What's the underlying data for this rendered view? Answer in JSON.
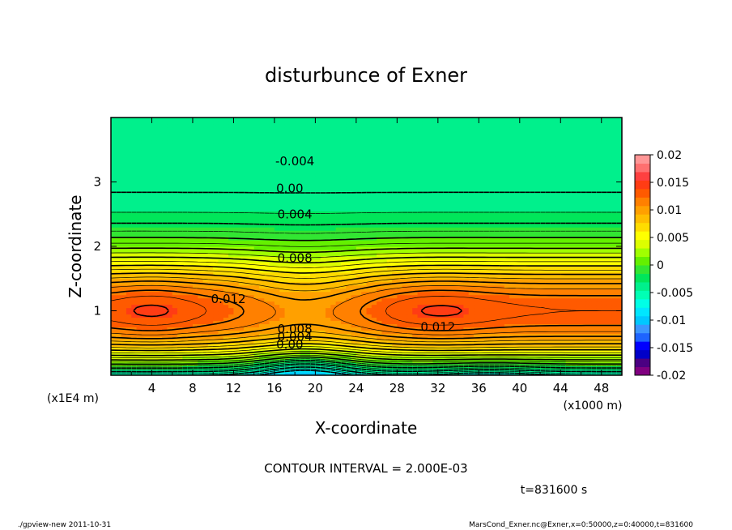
{
  "chart_data": {
    "type": "heatmap",
    "title": "disturbunce of Exner",
    "xlabel": "X-coordinate",
    "ylabel": "Z-coordinate",
    "x_unit_label": "(x1000 m)",
    "y_unit_label": "(x1E4 m)",
    "x_ticks": [
      4,
      8,
      12,
      16,
      20,
      24,
      28,
      32,
      36,
      40,
      44,
      48
    ],
    "x_range": [
      0,
      50
    ],
    "y_ticks": [
      1,
      2,
      3
    ],
    "y_range": [
      0,
      4
    ],
    "colorbar": {
      "ticks": [
        "0.02",
        "0.015",
        "0.01",
        "0.005",
        "0",
        "-0.005",
        "-0.01",
        "-0.015",
        "-0.02"
      ],
      "range": [
        -0.02,
        0.02
      ],
      "interval": 0.002,
      "colors": [
        "#800080",
        "#4b0082",
        "#0000c8",
        "#0000ff",
        "#1e64ff",
        "#3c96ff",
        "#00c8ff",
        "#00e6ff",
        "#00ffe6",
        "#00ffb4",
        "#00f08c",
        "#00e65a",
        "#32e632",
        "#64f000",
        "#a0ff00",
        "#dcff00",
        "#ffff00",
        "#ffdc00",
        "#ffbe00",
        "#ffa000",
        "#ff8000",
        "#ff5a00",
        "#ff3c14",
        "#ff4040",
        "#ff7070",
        "#ff9696"
      ]
    },
    "contour_labels": [
      {
        "text": "-0.004",
        "x": 18,
        "z": 3.32
      },
      {
        "text": "0.00",
        "x": 17.5,
        "z": 2.9
      },
      {
        "text": "0.004",
        "x": 18,
        "z": 2.5
      },
      {
        "text": "0.008",
        "x": 18,
        "z": 1.82
      },
      {
        "text": "0.012",
        "x": 11.5,
        "z": 1.18
      },
      {
        "text": "0.012",
        "x": 32,
        "z": 0.75
      },
      {
        "text": "0.008",
        "x": 18,
        "z": 0.72
      },
      {
        "text": "0.004",
        "x": 18,
        "z": 0.6
      },
      {
        "text": "0.00",
        "x": 17.5,
        "z": 0.48
      }
    ],
    "contour_interval_text": "CONTOUR INTERVAL = 2.000E-03",
    "time_text": "t=831600 s",
    "field_description": "Perturbation Exner function vs x (0-50 km) and z (0-40 km): ~0.013 maxima at z~1 near x=4 and x=32, decreasing upward to about -0.004 aloft; minimum about -0.006 near surface at x~19"
  },
  "footer": {
    "left": "./gpview-new  2011-10-31",
    "right": "MarsCond_Exner.nc@Exner,x=0:50000,z=0:40000,t=831600"
  }
}
